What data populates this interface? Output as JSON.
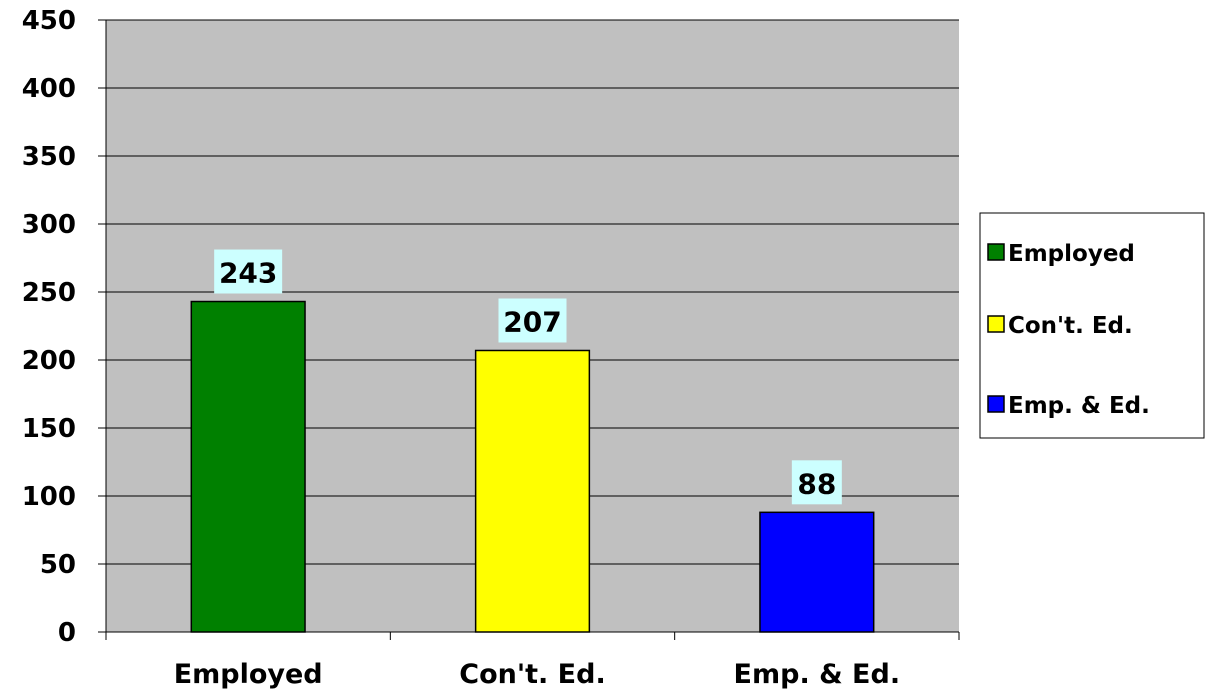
{
  "chart_data": {
    "type": "bar",
    "categories": [
      "Employed",
      "Con't. Ed.",
      "Emp. & Ed."
    ],
    "values": [
      243,
      207,
      88
    ],
    "data_labels": [
      "243",
      "207",
      "88"
    ],
    "colors": [
      "#008000",
      "#FFFF00",
      "#0000FF"
    ],
    "ylim": [
      0,
      450
    ],
    "yticks": [
      "0",
      "50",
      "100",
      "150",
      "200",
      "250",
      "300",
      "350",
      "400",
      "450"
    ],
    "grid": true,
    "plot_background": "#C0C0C0",
    "data_label_background": "#CCFFFF",
    "legend": {
      "placement": "right",
      "entries": [
        "Employed",
        "Con't. Ed.",
        "Emp. & Ed."
      ]
    }
  }
}
